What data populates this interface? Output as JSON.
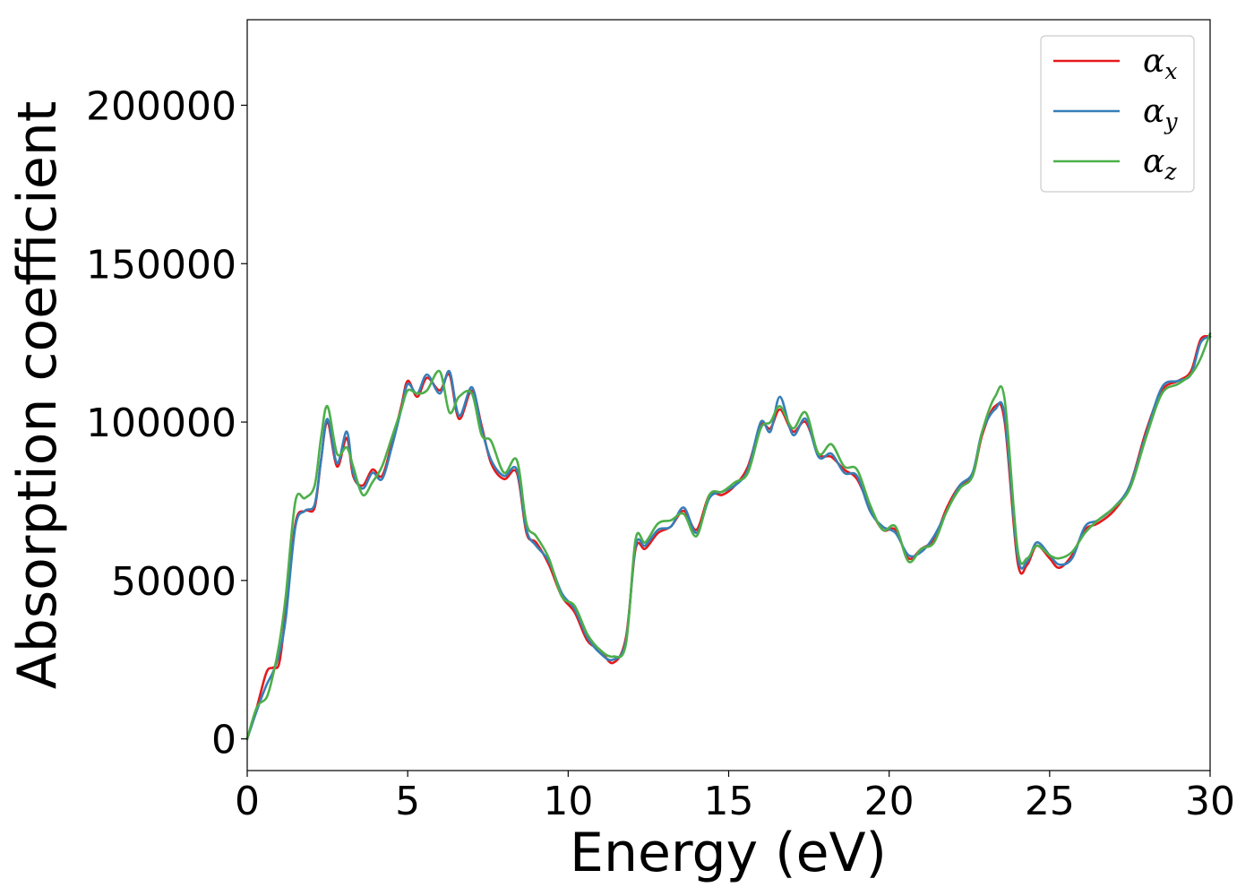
{
  "chart_data": {
    "type": "line",
    "title": "",
    "xlabel": "Energy (eV)",
    "ylabel": "Absorption coefficient",
    "xlim": [
      0,
      30
    ],
    "ylim": [
      -10000,
      227000
    ],
    "xticks": [
      0,
      5,
      10,
      15,
      20,
      25,
      30
    ],
    "xtick_labels": [
      "0",
      "5",
      "10",
      "15",
      "20",
      "25",
      "30"
    ],
    "yticks": [
      0,
      50000,
      100000,
      150000,
      200000
    ],
    "ytick_labels": [
      "0",
      "50000",
      "100000",
      "150000",
      "200000"
    ],
    "grid": false,
    "legend_position": "top-right",
    "series": [
      {
        "name": "α",
        "subscript": "x",
        "color": "#e41a1c",
        "x": [
          0,
          0.3,
          0.6,
          0.8,
          1.0,
          1.2,
          1.5,
          1.8,
          2.1,
          2.3,
          2.5,
          2.8,
          3.1,
          3.3,
          3.6,
          3.9,
          4.2,
          4.5,
          4.8,
          5.0,
          5.3,
          5.6,
          6.0,
          6.3,
          6.6,
          7.0,
          7.3,
          7.6,
          8.0,
          8.4,
          8.7,
          9.0,
          9.4,
          9.8,
          10.2,
          10.6,
          11.0,
          11.4,
          11.8,
          12.1,
          12.4,
          12.8,
          13.2,
          13.6,
          14.0,
          14.4,
          14.8,
          15.2,
          15.6,
          16.0,
          16.3,
          16.6,
          17.0,
          17.4,
          17.8,
          18.2,
          18.6,
          19.0,
          19.4,
          19.8,
          20.2,
          20.6,
          21.0,
          21.4,
          21.8,
          22.2,
          22.6,
          22.9,
          23.3,
          23.6,
          24.0,
          24.3,
          24.6,
          25.0,
          25.3,
          25.7,
          26.1,
          26.5,
          27.0,
          27.5,
          28.0,
          28.5,
          29.0,
          29.4,
          29.7,
          30.0
        ],
        "y": [
          0,
          10000,
          21000,
          22500,
          24000,
          40000,
          68000,
          72000,
          73000,
          88000,
          100000,
          86000,
          95000,
          83000,
          80000,
          85000,
          83000,
          93000,
          105000,
          113000,
          108000,
          114000,
          110000,
          115000,
          101000,
          110000,
          99000,
          87000,
          82000,
          84000,
          65000,
          62000,
          55000,
          45000,
          40000,
          31000,
          28000,
          24000,
          32000,
          60000,
          60000,
          65000,
          67000,
          72000,
          66000,
          77000,
          77000,
          80000,
          86000,
          99000,
          98000,
          104000,
          97000,
          100000,
          90000,
          89000,
          85000,
          82000,
          73000,
          66000,
          66000,
          57000,
          60000,
          63000,
          73000,
          80000,
          83000,
          96000,
          105000,
          100000,
          56000,
          55000,
          61000,
          57000,
          54000,
          58000,
          66000,
          68000,
          72000,
          80000,
          97000,
          110000,
          113000,
          116000,
          126000,
          127000
        ]
      },
      {
        "name": "α",
        "subscript": "y",
        "color": "#377eb8",
        "x": [
          0,
          0.3,
          0.6,
          0.8,
          1.0,
          1.2,
          1.5,
          1.8,
          2.1,
          2.3,
          2.5,
          2.8,
          3.1,
          3.3,
          3.6,
          3.9,
          4.2,
          4.5,
          4.8,
          5.0,
          5.3,
          5.6,
          6.0,
          6.3,
          6.6,
          7.0,
          7.3,
          7.6,
          8.0,
          8.4,
          8.7,
          9.0,
          9.4,
          9.8,
          10.2,
          10.6,
          11.0,
          11.4,
          11.8,
          12.1,
          12.4,
          12.8,
          13.2,
          13.6,
          14.0,
          14.4,
          14.8,
          15.2,
          15.6,
          16.0,
          16.3,
          16.6,
          17.0,
          17.4,
          17.8,
          18.2,
          18.6,
          19.0,
          19.4,
          19.8,
          20.2,
          20.6,
          21.0,
          21.4,
          21.8,
          22.2,
          22.6,
          22.9,
          23.3,
          23.6,
          24.0,
          24.3,
          24.6,
          25.0,
          25.3,
          25.7,
          26.1,
          26.5,
          27.0,
          27.5,
          28.0,
          28.5,
          29.0,
          29.4,
          29.7,
          30.0
        ],
        "y": [
          0,
          9000,
          17000,
          21000,
          27000,
          38000,
          67000,
          72000,
          74000,
          88000,
          101000,
          87000,
          97000,
          84000,
          79000,
          84000,
          82000,
          92000,
          104000,
          112000,
          109000,
          115000,
          109000,
          116000,
          102000,
          111000,
          98000,
          88000,
          83000,
          85000,
          66000,
          61000,
          56000,
          46000,
          41000,
          32000,
          27000,
          25000,
          31000,
          61000,
          61000,
          66000,
          67000,
          73000,
          65000,
          76000,
          78000,
          80000,
          85000,
          100000,
          97000,
          108000,
          96000,
          101000,
          89000,
          90000,
          84000,
          83000,
          72000,
          67000,
          65000,
          58000,
          59000,
          64000,
          72000,
          80000,
          84000,
          97000,
          104000,
          102000,
          58000,
          56000,
          62000,
          58000,
          55000,
          57000,
          67000,
          69000,
          73000,
          80000,
          96000,
          111000,
          113000,
          115000,
          125000,
          127000
        ]
      },
      {
        "name": "α",
        "subscript": "z",
        "color": "#4daf4a",
        "x": [
          0,
          0.3,
          0.6,
          0.8,
          1.0,
          1.2,
          1.5,
          1.8,
          2.1,
          2.3,
          2.5,
          2.8,
          3.1,
          3.3,
          3.6,
          3.9,
          4.2,
          4.5,
          4.8,
          5.0,
          5.3,
          5.6,
          6.0,
          6.3,
          6.6,
          7.0,
          7.3,
          7.6,
          8.0,
          8.4,
          8.7,
          9.0,
          9.4,
          9.8,
          10.2,
          10.6,
          11.0,
          11.4,
          11.8,
          12.1,
          12.4,
          12.8,
          13.2,
          13.6,
          14.0,
          14.4,
          14.8,
          15.2,
          15.6,
          16.0,
          16.3,
          16.6,
          17.0,
          17.4,
          17.8,
          18.2,
          18.6,
          19.0,
          19.4,
          19.8,
          20.2,
          20.6,
          21.0,
          21.4,
          21.8,
          22.2,
          22.6,
          22.9,
          23.3,
          23.6,
          24.0,
          24.3,
          24.6,
          25.0,
          25.3,
          25.7,
          26.1,
          26.5,
          27.0,
          27.5,
          28.0,
          28.5,
          29.0,
          29.4,
          29.7,
          30.0
        ],
        "y": [
          0,
          10000,
          13000,
          20000,
          30000,
          45000,
          75000,
          76000,
          80000,
          95000,
          105000,
          90000,
          92000,
          86000,
          77000,
          81000,
          86000,
          95000,
          104000,
          110000,
          109000,
          110000,
          116000,
          103000,
          108000,
          109000,
          96000,
          94000,
          84000,
          88000,
          68000,
          64000,
          57000,
          45000,
          42000,
          33000,
          28000,
          26000,
          30000,
          63000,
          62000,
          68000,
          69000,
          71000,
          64000,
          77000,
          78000,
          81000,
          84000,
          98000,
          100000,
          105000,
          98000,
          103000,
          90000,
          93000,
          86000,
          85000,
          74000,
          66000,
          67000,
          56000,
          60000,
          62000,
          72000,
          79000,
          83000,
          97000,
          108000,
          107000,
          60000,
          57000,
          61000,
          58000,
          57000,
          59000,
          65000,
          69000,
          73000,
          79000,
          95000,
          109000,
          112000,
          115000,
          120000,
          128000
        ]
      }
    ]
  }
}
